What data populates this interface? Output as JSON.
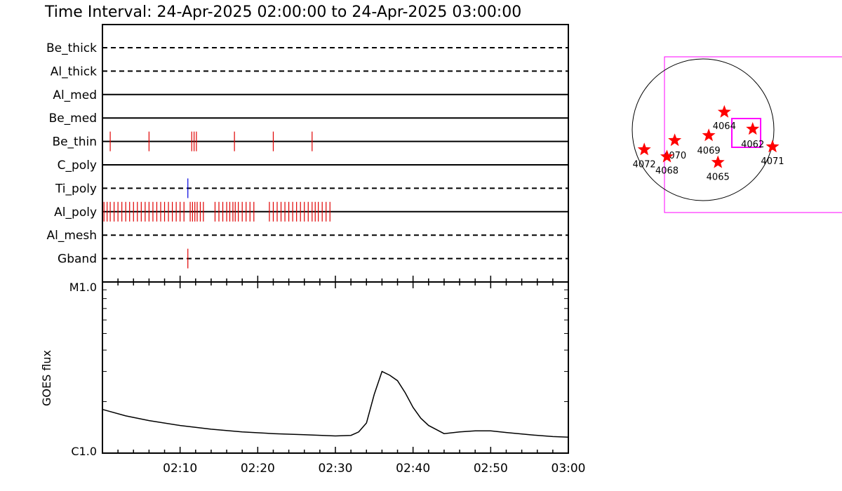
{
  "title": "Time Interval: 24-Apr-2025 02:00:00 to 24-Apr-2025 03:00:00",
  "chart_data": [
    {
      "type": "event-timeline",
      "x_range": [
        "02:00",
        "03:00"
      ],
      "x_unit": "minutes",
      "rows": [
        {
          "label": "Be_thick",
          "style": "dashed",
          "events": []
        },
        {
          "label": "Al_thick",
          "style": "dashed",
          "events": []
        },
        {
          "label": "Al_med",
          "style": "solid",
          "events": []
        },
        {
          "label": "Be_med",
          "style": "solid",
          "events": []
        },
        {
          "label": "Be_thin",
          "style": "solid",
          "events": [
            1.0,
            6.0,
            11.5,
            11.8,
            12.1,
            17.0,
            22.0,
            27.0
          ],
          "event_color": "#e00000"
        },
        {
          "label": "C_poly",
          "style": "solid",
          "events": []
        },
        {
          "label": "Ti_poly",
          "style": "dashed",
          "events": [
            11.0
          ],
          "event_color": "#0000dd"
        },
        {
          "label": "Al_poly",
          "style": "solid",
          "events": [
            0.2,
            0.6,
            1.0,
            1.5,
            2.0,
            2.5,
            3.0,
            3.5,
            4.0,
            4.5,
            5.0,
            5.5,
            6.0,
            6.5,
            7.0,
            7.5,
            8.0,
            8.5,
            9.0,
            9.5,
            10.0,
            10.5,
            11.3,
            11.6,
            11.9,
            12.2,
            12.6,
            13.0,
            14.5,
            15.0,
            15.5,
            16.0,
            16.4,
            16.8,
            17.1,
            17.5,
            18.0,
            18.5,
            19.0,
            19.5,
            21.5,
            22.0,
            22.5,
            23.0,
            23.5,
            24.0,
            24.5,
            25.0,
            25.5,
            26.0,
            26.5,
            27.0,
            27.4,
            27.8,
            28.3,
            28.8,
            29.3
          ],
          "event_color": "#e00000"
        },
        {
          "label": "Al_mesh",
          "style": "dashed",
          "events": []
        },
        {
          "label": "Gband",
          "style": "dashed",
          "events": [
            11.0
          ],
          "event_color": "#e00000"
        }
      ]
    },
    {
      "type": "line",
      "ylabel": "GOES flux",
      "y_scale": "log",
      "y_tick_labels": [
        "C1.0",
        "M1.0"
      ],
      "ylim": [
        1e-06,
        1e-05
      ],
      "x_tick_labels": [
        "02:10",
        "02:20",
        "02:30",
        "02:40",
        "02:50",
        "03:00"
      ],
      "x_range_minutes": [
        0,
        60
      ],
      "series": [
        {
          "values_x_minutes": [
            0,
            3,
            6,
            10,
            14,
            18,
            22,
            26,
            30,
            32,
            33,
            34,
            35,
            36,
            37,
            38,
            39,
            40,
            41,
            42,
            44,
            46,
            48,
            50,
            52,
            55,
            58,
            60
          ],
          "values_y": [
            1.8e-06,
            1.65e-06,
            1.55e-06,
            1.45e-06,
            1.38e-06,
            1.33e-06,
            1.3e-06,
            1.28e-06,
            1.26e-06,
            1.27e-06,
            1.33e-06,
            1.5e-06,
            2.2e-06,
            3e-06,
            2.85e-06,
            2.65e-06,
            2.25e-06,
            1.85e-06,
            1.6e-06,
            1.45e-06,
            1.3e-06,
            1.33e-06,
            1.35e-06,
            1.35e-06,
            1.32e-06,
            1.28e-06,
            1.25e-06,
            1.24e-06
          ]
        }
      ]
    },
    {
      "type": "scatter",
      "marker": "star",
      "marker_color": "#ff0000",
      "frame_color": "#ff00ff",
      "points": [
        {
          "label": "4064",
          "x": 0.3,
          "y": 0.25
        },
        {
          "label": "4062",
          "x": 0.7,
          "y": 0.01
        },
        {
          "label": "4069",
          "x": 0.08,
          "y": -0.08
        },
        {
          "label": "4070",
          "x": -0.4,
          "y": -0.15
        },
        {
          "label": "4072",
          "x": -0.83,
          "y": -0.28
        },
        {
          "label": "4068",
          "x": -0.51,
          "y": -0.38
        },
        {
          "label": "4065",
          "x": 0.21,
          "y": -0.46
        },
        {
          "label": "4071",
          "x": 0.98,
          "y": -0.24
        }
      ]
    }
  ]
}
